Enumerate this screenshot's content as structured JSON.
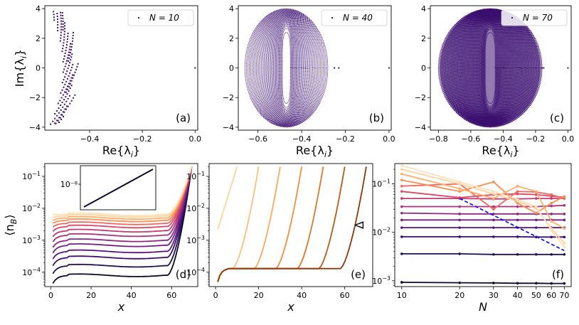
{
  "chart_data": [
    {
      "id": "a",
      "type": "scatter",
      "panel_label": "(a)",
      "xlabel": "Re{λ_i}",
      "ylabel": "Im{λ_i}",
      "xlim": [
        -0.57,
        0.01
      ],
      "ylim": [
        -4.2,
        4.2
      ],
      "xticks": [
        -0.4,
        -0.2,
        0.0
      ],
      "xtick_labels": [
        "−0.4",
        "−0.2",
        "0.0"
      ],
      "yticks": [
        -4,
        -2,
        0,
        2,
        4
      ],
      "ytick_labels": [
        "−4",
        "−2",
        "0",
        "2",
        "4"
      ],
      "legend": "N = 10",
      "legend_position": "top-right",
      "color": "#3b0f70",
      "spectrum": {
        "N": 10,
        "center": -0.47,
        "real_halfwidth": 0.06,
        "imag_max": 3.8
      }
    },
    {
      "id": "b",
      "type": "scatter",
      "panel_label": "(b)",
      "xlabel": "Re{λ_i}",
      "ylabel": "",
      "xlim": [
        -0.69,
        0.01
      ],
      "ylim": [
        -4.2,
        4.2
      ],
      "xticks": [
        -0.6,
        -0.4,
        -0.2,
        0.0
      ],
      "xtick_labels": [
        "−0.6",
        "−0.4",
        "−0.2",
        "0.0"
      ],
      "yticks": [
        -4,
        -2,
        0,
        2,
        4
      ],
      "ytick_labels": [
        "−4",
        "−2",
        "0",
        "2",
        "4"
      ],
      "legend": "N = 40",
      "legend_position": "top-right",
      "color": "#3b0f70",
      "spectrum": {
        "N": 40,
        "center": -0.47,
        "real_halfwidth": 0.19,
        "imag_max": 4.0,
        "outliers": [
          -0.25,
          -0.23,
          0.0
        ]
      }
    },
    {
      "id": "c",
      "type": "scatter",
      "panel_label": "(c)",
      "xlabel": "Re{λ_i}",
      "ylabel": "",
      "xlim": [
        -0.85,
        0.02
      ],
      "ylim": [
        -4.2,
        4.2
      ],
      "xticks": [
        -0.8,
        -0.6,
        -0.4,
        -0.2,
        0.0
      ],
      "xtick_labels": [
        "−0.8",
        "−0.6",
        "−0.4",
        "−0.2",
        "0.0"
      ],
      "yticks": [
        -4,
        -2,
        0,
        2,
        4
      ],
      "ytick_labels": [
        "−4",
        "−2",
        "0",
        "2",
        "4"
      ],
      "legend": "N = 70",
      "legend_position": "top-right",
      "color": "#3b0f70",
      "spectrum": {
        "N": 70,
        "center": -0.48,
        "real_halfwidth": 0.32,
        "imag_max": 4.0,
        "outliers": [
          -0.16,
          -0.15,
          0.0
        ]
      }
    },
    {
      "id": "d",
      "type": "line",
      "panel_label": "(d)",
      "xlabel": "x",
      "ylabel": "⟨n_B⟩",
      "yscale": "log",
      "xlim": [
        -3,
        73
      ],
      "ylim_log10": [
        -4.45,
        -0.6
      ],
      "xticks": [
        0,
        20,
        40,
        60
      ],
      "xtick_labels": [
        "0",
        "20",
        "40",
        "60"
      ],
      "yticks_log10": [
        -4,
        -3,
        -2,
        -1
      ],
      "series": [
        {
          "plateau": 8e-05,
          "start": 4.5e-05,
          "end": 0.2,
          "color": "#0d0829"
        },
        {
          "plateau": 0.00016,
          "start": 9e-05,
          "end": 0.2,
          "color": "#221150"
        },
        {
          "plateau": 0.00029,
          "start": 0.00016,
          "end": 0.2,
          "color": "#3b0f70"
        },
        {
          "plateau": 0.00045,
          "start": 0.00026,
          "end": 0.2,
          "color": "#57157e"
        },
        {
          "plateau": 0.0007,
          "start": 0.0004,
          "end": 0.2,
          "color": "#721f81"
        },
        {
          "plateau": 0.001,
          "start": 0.0006,
          "end": 0.2,
          "color": "#8c2981"
        },
        {
          "plateau": 0.00145,
          "start": 0.0009,
          "end": 0.2,
          "color": "#a8327d"
        },
        {
          "plateau": 0.002,
          "start": 0.0013,
          "end": 0.2,
          "color": "#c33b75"
        },
        {
          "plateau": 0.0027,
          "start": 0.0019,
          "end": 0.2,
          "color": "#dc4869"
        },
        {
          "plateau": 0.0034,
          "start": 0.0026,
          "end": 0.2,
          "color": "#ef6a5d"
        },
        {
          "plateau": 0.0042,
          "start": 0.0034,
          "end": 0.2,
          "color": "#f98e52"
        },
        {
          "plateau": 0.005,
          "start": 0.0042,
          "end": 0.2,
          "color": "#fcae69"
        },
        {
          "plateau": 0.0058,
          "start": 0.0052,
          "end": 0.2,
          "color": "#fdd49e"
        },
        {
          "plateau": 0.0065,
          "start": 0.0062,
          "end": 0.2,
          "color": "#fde0b8"
        }
      ],
      "inset": {
        "type": "line",
        "tick_label": "10⁻⁸",
        "color": "#0d0829"
      }
    },
    {
      "id": "e",
      "type": "line",
      "panel_label": "(e)",
      "xlabel": "x",
      "ylabel": "",
      "yscale": "log",
      "xlim": [
        -3,
        73
      ],
      "ylim_log10": [
        -4.45,
        -0.6
      ],
      "xticks": [
        0,
        20,
        40,
        60
      ],
      "xtick_labels": [
        "0",
        "20",
        "40",
        "60"
      ],
      "yticks_log10": [
        -4,
        -3,
        -2,
        -1
      ],
      "series": [
        {
          "length": 10,
          "color": "#fdd49e"
        },
        {
          "length": 20,
          "color": "#fcc07e"
        },
        {
          "length": 30,
          "color": "#fbaa5c"
        },
        {
          "length": 40,
          "color": "#f28f3e"
        },
        {
          "length": 50,
          "color": "#e07626"
        },
        {
          "length": 60,
          "color": "#bd5a14"
        },
        {
          "length": 70,
          "color": "#8a3a0a"
        }
      ]
    },
    {
      "id": "f",
      "type": "line",
      "panel_label": "(f)",
      "xlabel": "N",
      "ylabel": "Δ",
      "xscale": "log",
      "yscale": "log",
      "xlim": [
        9.2,
        76
      ],
      "ylim_log10": [
        -3.12,
        -0.58
      ],
      "xticks": [
        10,
        20,
        30,
        40,
        50,
        60,
        70
      ],
      "xtick_labels": [
        "10",
        "20",
        "30",
        "40",
        "50",
        "60",
        "70"
      ],
      "yticks_log10": [
        -3,
        -2,
        -1
      ],
      "x": [
        10,
        20,
        30,
        40,
        50,
        60,
        70
      ],
      "series": [
        {
          "values": [
            0.00093,
            0.00091,
            0.0009,
            0.00089,
            0.00089,
            0.00088,
            0.00088
          ],
          "color": "#0d0829"
        },
        {
          "values": [
            0.0036,
            0.0036,
            0.0035,
            0.0035,
            0.0035,
            0.0035,
            0.0035
          ],
          "color": "#221150"
        },
        {
          "values": [
            0.0081,
            0.0081,
            0.0081,
            0.0081,
            0.008,
            0.008,
            0.008
          ],
          "color": "#3b0f70"
        },
        {
          "values": [
            0.0125,
            0.0125,
            0.0125,
            0.0125,
            0.0125,
            0.0125,
            0.0125
          ],
          "color": "#57157e"
        },
        {
          "values": [
            0.018,
            0.018,
            0.018,
            0.018,
            0.018,
            0.018,
            0.018
          ],
          "color": "#721f81"
        },
        {
          "values": [
            0.025,
            0.024,
            0.024,
            0.024,
            0.024,
            0.024,
            0.024
          ],
          "color": "#8c2981"
        },
        {
          "values": [
            0.034,
            0.034,
            0.034,
            0.034,
            0.034,
            0.035,
            0.036
          ],
          "color": "#a8327d"
        },
        {
          "values": [
            0.05,
            0.05,
            0.049,
            0.049,
            0.05,
            0.05,
            0.05
          ],
          "color": "#c33b75"
        },
        {
          "values": [
            0.07,
            0.052,
            0.06,
            0.062,
            0.06,
            0.056,
            0.053
          ],
          "color": "#dc4869"
        },
        {
          "values": [
            0.09,
            0.1,
            0.03,
            0.07,
            0.068,
            0.06,
            0.05
          ],
          "color": "#ef6a5d"
        },
        {
          "values": [
            0.12,
            0.07,
            0.11,
            0.04,
            0.025,
            0.04,
            0.055
          ],
          "color": "#f98e52"
        },
        {
          "values": [
            0.16,
            0.08,
            0.05,
            0.09,
            0.07,
            0.017,
            0.012
          ],
          "color": "#fcae69"
        },
        {
          "values": [
            0.2,
            0.1,
            0.062,
            0.044,
            0.031,
            0.012,
            0.006
          ],
          "color": "#fdd49e"
        },
        {
          "values": [
            0.24,
            0.11,
            0.07,
            0.048,
            0.034,
            0.011,
            0.005
          ],
          "color": "#fde0b8"
        }
      ],
      "reference_line": {
        "x": [
          20,
          70
        ],
        "values": [
          0.05,
          0.0042
        ],
        "color": "#0000ff",
        "style": "dashed"
      }
    }
  ]
}
